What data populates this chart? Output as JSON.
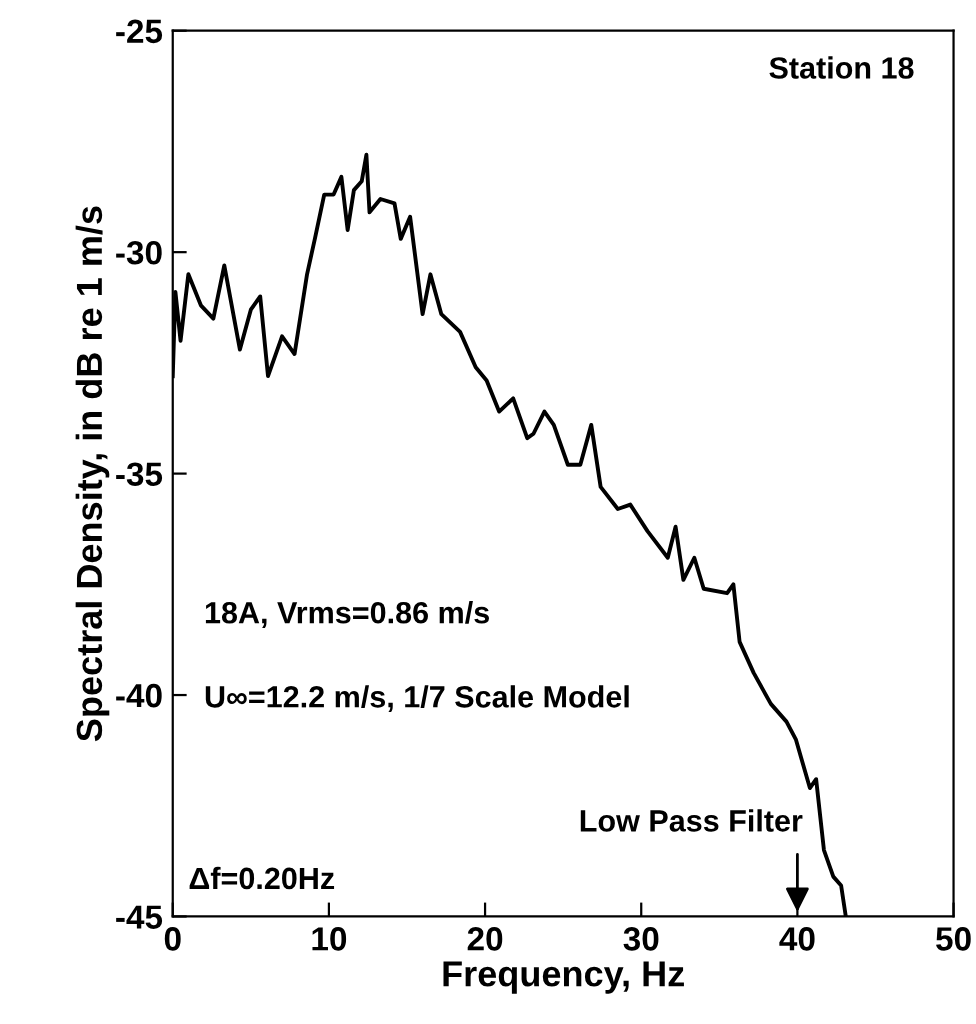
{
  "chart_data": {
    "type": "line",
    "xlabel": "Frequency, Hz",
    "ylabel": "Spectral Density, in dB re 1 m/s",
    "xlim": [
      0,
      50
    ],
    "ylim": [
      -45,
      -25
    ],
    "xticks": [
      0,
      10,
      20,
      30,
      40,
      50
    ],
    "yticks": [
      -45,
      -40,
      -35,
      -30,
      -25
    ],
    "grid": false,
    "marker": "none",
    "line_style": "solid",
    "series": [
      {
        "color": "#000000",
        "x": [
          0,
          0.17,
          0.5,
          1.0,
          1.8,
          2.6,
          3.3,
          4.3,
          5.0,
          5.6,
          6.1,
          7.0,
          7.8,
          8.6,
          9.1,
          9.7,
          10.3,
          10.8,
          11.2,
          11.6,
          12.1,
          12.4,
          12.6,
          13.3,
          14.2,
          14.6,
          15.2,
          16.0,
          16.5,
          17.2,
          18.4,
          19.4,
          20.1,
          20.9,
          21.8,
          22.7,
          23.1,
          23.8,
          24.4,
          25.3,
          26.1,
          26.8,
          27.4,
          28.5,
          29.3,
          30.4,
          31.7,
          32.2,
          32.7,
          33.4,
          34.0,
          35.5,
          35.9,
          36.3,
          37.2,
          38.3,
          39.3,
          39.9,
          40.8,
          41.2,
          41.7,
          42.3,
          42.8,
          43.1
        ],
        "values": [
          -32.8,
          -30.9,
          -32.0,
          -30.5,
          -31.2,
          -31.5,
          -30.3,
          -32.2,
          -31.3,
          -31.0,
          -32.8,
          -31.9,
          -32.3,
          -30.5,
          -29.7,
          -28.7,
          -28.7,
          -28.3,
          -29.5,
          -28.6,
          -28.4,
          -27.8,
          -29.1,
          -28.8,
          -28.9,
          -29.7,
          -29.2,
          -31.4,
          -30.5,
          -31.4,
          -31.8,
          -32.6,
          -32.9,
          -33.6,
          -33.3,
          -34.2,
          -34.1,
          -33.6,
          -33.9,
          -34.8,
          -34.8,
          -33.9,
          -35.3,
          -35.8,
          -35.7,
          -36.3,
          -36.9,
          -36.2,
          -37.4,
          -36.9,
          -37.6,
          -37.7,
          -37.5,
          -38.8,
          -39.5,
          -40.2,
          -40.6,
          -41.0,
          -42.1,
          -41.9,
          -43.5,
          -44.1,
          -44.3,
          -45.0
        ]
      }
    ],
    "annotations": [
      "Station 18",
      "18A, Vrms=0.86 m/s",
      "U∞=12.2 m/s, 1/7 Scale Model",
      "Δf=0.20Hz",
      "Low Pass Filter"
    ]
  }
}
